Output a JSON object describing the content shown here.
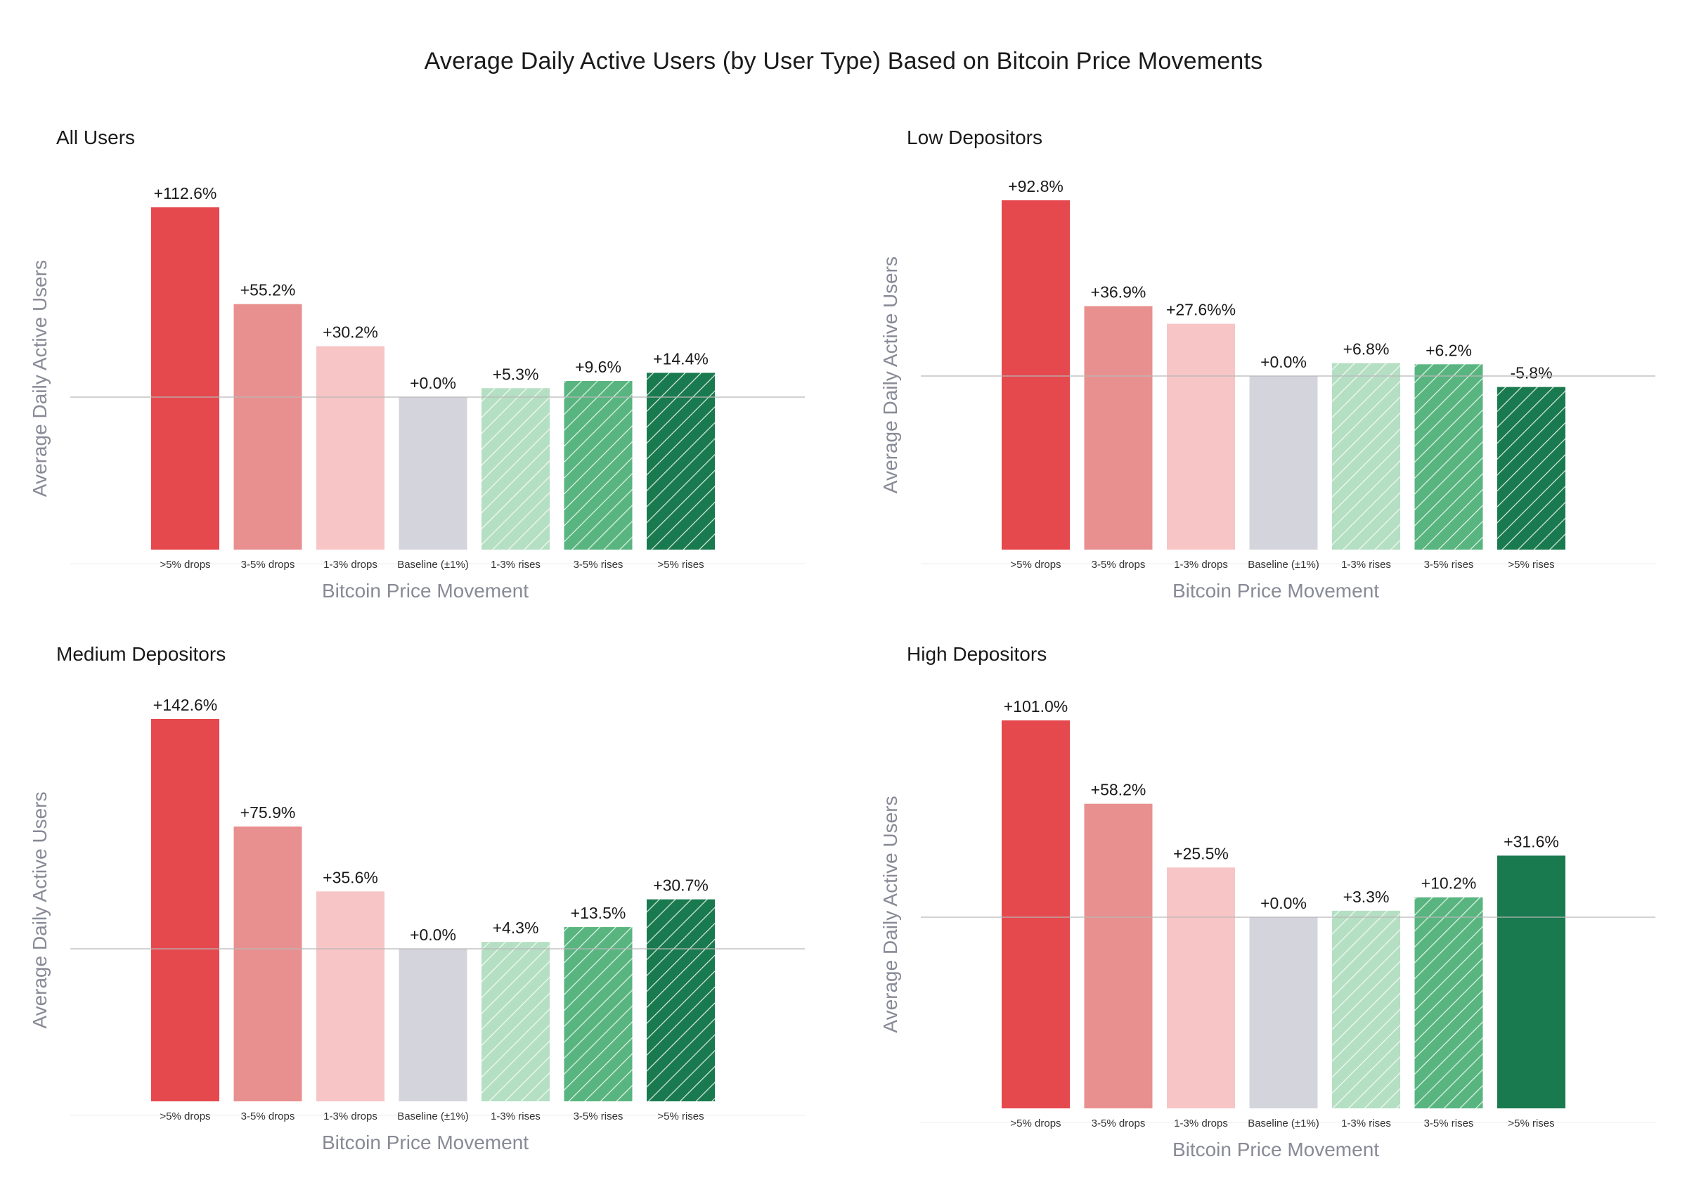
{
  "title": "Average Daily Active Users (by User Type) Based on Bitcoin Price Movements",
  "chart_data": [
    {
      "type": "bar",
      "title": "All Users",
      "xlabel": "Bitcoin Price Movement",
      "ylabel": "Average Daily Active Users",
      "categories": [
        ">5% drops",
        "3-5% drops",
        "1-3% drops",
        "Baseline (±1%)",
        "1-3% rises",
        "3-5% rises",
        ">5% rises"
      ],
      "values": [
        112.6,
        55.2,
        30.2,
        0.0,
        5.3,
        9.6,
        14.4
      ],
      "labels": [
        "+112.6%",
        "+55.2%",
        "+30.2%",
        "+0.0%",
        "+5.3%",
        "+9.6%",
        "+14.4%"
      ],
      "baseline_ref": 0.0,
      "grid": false,
      "legend": "none"
    },
    {
      "type": "bar",
      "title": "Low Depositors",
      "xlabel": "Bitcoin Price Movement",
      "ylabel": "Average Daily Active Users",
      "categories": [
        ">5% drops",
        "3-5% drops",
        "1-3% drops",
        "Baseline (±1%)",
        "1-3% rises",
        "3-5% rises",
        ">5% rises"
      ],
      "values": [
        92.8,
        36.9,
        27.6,
        0.0,
        6.8,
        6.2,
        -5.8
      ],
      "labels": [
        "+92.8%",
        "+36.9%",
        "+27.6%%",
        "+0.0%",
        "+6.8%",
        "+6.2%",
        "-5.8%"
      ],
      "baseline_ref": 0.0,
      "grid": false,
      "legend": "none"
    },
    {
      "type": "bar",
      "title": "Medium Depositors",
      "xlabel": "Bitcoin Price Movement",
      "ylabel": "Average Daily Active Users",
      "categories": [
        ">5% drops",
        "3-5% drops",
        "1-3% drops",
        "Baseline (±1%)",
        "1-3% rises",
        "3-5% rises",
        ">5% rises"
      ],
      "values": [
        142.6,
        75.9,
        35.6,
        0.0,
        4.3,
        13.5,
        30.7
      ],
      "labels": [
        "+142.6%",
        "+75.9%",
        "+35.6%",
        "+0.0%",
        "+4.3%",
        "+13.5%",
        "+30.7%"
      ],
      "baseline_ref": 0.0,
      "grid": false,
      "legend": "none"
    },
    {
      "type": "bar",
      "title": "High Depositors",
      "xlabel": "Bitcoin Price Movement",
      "ylabel": "Average Daily Active Users",
      "categories": [
        ">5% drops",
        "3-5% drops",
        "1-3% drops",
        "Baseline (±1%)",
        "1-3% rises",
        "3-5% rises",
        ">5% rises"
      ],
      "values": [
        101.0,
        58.2,
        25.5,
        0.0,
        3.3,
        10.2,
        31.6
      ],
      "labels": [
        "+101.0%",
        "+58.2%",
        "+25.5%",
        "+0.0%",
        "+3.3%",
        "+10.2%",
        "+31.6%"
      ],
      "baseline_ref": 0.0,
      "grid": false,
      "legend": "none"
    }
  ],
  "colors": {
    "strong_drop": "#e5484d",
    "medium_drop": "#e8908f",
    "light_drop": "#f7c5c5",
    "baseline": "#d4d4dc",
    "light_rise": "#b5dfc3",
    "medium_rise": "#59b580",
    "strong_rise": "#1a7a4f",
    "axis_text": "#888a96"
  },
  "bar_styles": [
    [
      "solid",
      "solid",
      "solid",
      "solid",
      "hatched",
      "hatched",
      "hatched"
    ],
    [
      "solid",
      "solid",
      "solid",
      "solid",
      "hatched",
      "hatched",
      "hatched"
    ],
    [
      "solid",
      "solid",
      "solid",
      "solid",
      "hatched",
      "hatched",
      "hatched"
    ],
    [
      "solid",
      "solid",
      "solid",
      "solid",
      "hatched",
      "hatched",
      "solid"
    ]
  ]
}
